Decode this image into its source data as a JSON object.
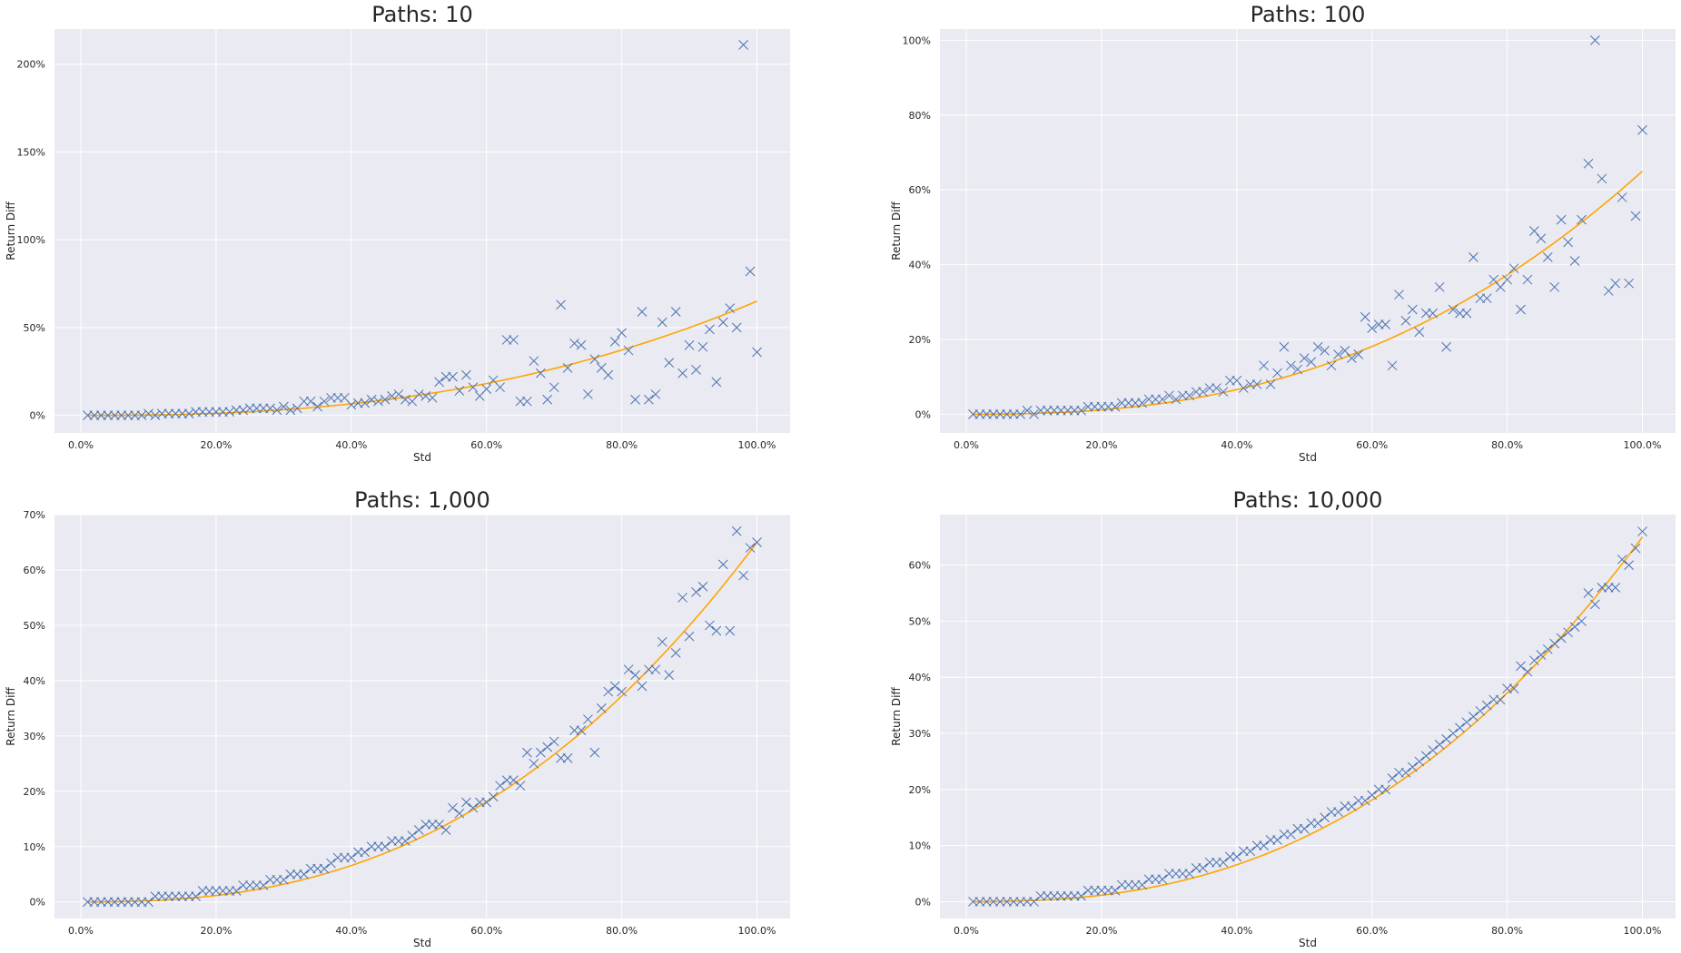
{
  "figure": {
    "background": "#ffffff",
    "panel_background": "#eaeaf2",
    "grid_color": "#ffffff",
    "marker_color": "#4c72b0",
    "fit_color": "#ffa500"
  },
  "chart_data": [
    {
      "type": "scatter",
      "title": "Paths: 10",
      "xlabel": "Std",
      "ylabel": "Return Diff",
      "x_ticks": [
        0,
        0.2,
        0.4,
        0.6,
        0.8,
        1.0
      ],
      "x_tick_labels": [
        "0.0%",
        "20.0%",
        "40.0%",
        "60.0%",
        "80.0%",
        "100.0%"
      ],
      "y_ticks": [
        0,
        0.5,
        1.0,
        1.5,
        2.0
      ],
      "y_tick_labels": [
        "0%",
        "50%",
        "100%",
        "150%",
        "200%"
      ],
      "xlim": [
        -0.039,
        1.049
      ],
      "ylim": [
        -0.1,
        2.2
      ],
      "grid": true,
      "x": [
        0.01,
        0.02,
        0.03,
        0.04,
        0.05,
        0.06,
        0.07,
        0.08,
        0.09,
        0.1,
        0.11,
        0.12,
        0.13,
        0.14,
        0.15,
        0.16,
        0.17,
        0.18,
        0.19,
        0.2,
        0.21,
        0.22,
        0.23,
        0.24,
        0.25,
        0.26,
        0.27,
        0.28,
        0.29,
        0.3,
        0.31,
        0.32,
        0.33,
        0.34,
        0.35,
        0.36,
        0.37,
        0.38,
        0.39,
        0.4,
        0.41,
        0.42,
        0.43,
        0.44,
        0.45,
        0.46,
        0.47,
        0.48,
        0.49,
        0.5,
        0.51,
        0.52,
        0.53,
        0.54,
        0.55,
        0.56,
        0.57,
        0.58,
        0.59,
        0.6,
        0.61,
        0.62,
        0.63,
        0.64,
        0.65,
        0.66,
        0.67,
        0.68,
        0.69,
        0.7,
        0.71,
        0.72,
        0.73,
        0.74,
        0.75,
        0.76,
        0.77,
        0.78,
        0.79,
        0.8,
        0.81,
        0.82,
        0.83,
        0.84,
        0.85,
        0.86,
        0.87,
        0.88,
        0.89,
        0.9,
        0.91,
        0.92,
        0.93,
        0.94,
        0.95,
        0.96,
        0.97,
        0.98,
        0.99,
        1.0
      ],
      "y": [
        0.0,
        0.0,
        0.0,
        0.0,
        0.0,
        0.0,
        0.0,
        0.0,
        0.0,
        0.01,
        0.0,
        0.01,
        0.01,
        0.01,
        0.01,
        0.01,
        0.02,
        0.02,
        0.02,
        0.02,
        0.02,
        0.02,
        0.03,
        0.03,
        0.04,
        0.04,
        0.04,
        0.04,
        0.03,
        0.05,
        0.03,
        0.04,
        0.08,
        0.08,
        0.05,
        0.08,
        0.1,
        0.1,
        0.1,
        0.06,
        0.07,
        0.07,
        0.09,
        0.08,
        0.09,
        0.11,
        0.12,
        0.09,
        0.08,
        0.12,
        0.11,
        0.1,
        0.19,
        0.22,
        0.22,
        0.14,
        0.23,
        0.16,
        0.11,
        0.15,
        0.2,
        0.16,
        0.43,
        0.43,
        0.08,
        0.08,
        0.31,
        0.24,
        0.09,
        0.16,
        0.63,
        0.27,
        0.41,
        0.4,
        0.12,
        0.32,
        0.27,
        0.23,
        0.42,
        0.47,
        0.37,
        0.09,
        0.59,
        0.09,
        0.12,
        0.53,
        0.3,
        0.59,
        0.24,
        0.4,
        0.26,
        0.39,
        0.49,
        0.19,
        0.53,
        0.61,
        0.5,
        2.11,
        0.82,
        0.36
      ],
      "fit": {
        "coefficient": 0.65,
        "exponent": 2.5
      }
    },
    {
      "type": "scatter",
      "title": "Paths: 100",
      "xlabel": "Std",
      "ylabel": "Return Diff",
      "x_ticks": [
        0,
        0.2,
        0.4,
        0.6,
        0.8,
        1.0
      ],
      "x_tick_labels": [
        "0.0%",
        "20.0%",
        "40.0%",
        "60.0%",
        "80.0%",
        "100.0%"
      ],
      "y_ticks": [
        0,
        0.2,
        0.4,
        0.6,
        0.8,
        1.0
      ],
      "y_tick_labels": [
        "0%",
        "20%",
        "40%",
        "60%",
        "80%",
        "100%"
      ],
      "xlim": [
        -0.039,
        1.049
      ],
      "ylim": [
        -0.05,
        1.03
      ],
      "grid": true,
      "x": [
        0.01,
        0.02,
        0.03,
        0.04,
        0.05,
        0.06,
        0.07,
        0.08,
        0.09,
        0.1,
        0.11,
        0.12,
        0.13,
        0.14,
        0.15,
        0.16,
        0.17,
        0.18,
        0.19,
        0.2,
        0.21,
        0.22,
        0.23,
        0.24,
        0.25,
        0.26,
        0.27,
        0.28,
        0.29,
        0.3,
        0.31,
        0.32,
        0.33,
        0.34,
        0.35,
        0.36,
        0.37,
        0.38,
        0.39,
        0.4,
        0.41,
        0.42,
        0.43,
        0.44,
        0.45,
        0.46,
        0.47,
        0.48,
        0.49,
        0.5,
        0.51,
        0.52,
        0.53,
        0.54,
        0.55,
        0.56,
        0.57,
        0.58,
        0.59,
        0.6,
        0.61,
        0.62,
        0.63,
        0.64,
        0.65,
        0.66,
        0.67,
        0.68,
        0.69,
        0.7,
        0.71,
        0.72,
        0.73,
        0.74,
        0.75,
        0.76,
        0.77,
        0.78,
        0.79,
        0.8,
        0.81,
        0.82,
        0.83,
        0.84,
        0.85,
        0.86,
        0.87,
        0.88,
        0.89,
        0.9,
        0.91,
        0.92,
        0.93,
        0.94,
        0.95,
        0.96,
        0.97,
        0.98,
        0.99,
        1.0
      ],
      "y": [
        0.0,
        0.0,
        0.0,
        0.0,
        0.0,
        0.0,
        0.0,
        0.0,
        0.01,
        0.0,
        0.01,
        0.01,
        0.01,
        0.01,
        0.01,
        0.01,
        0.01,
        0.02,
        0.02,
        0.02,
        0.02,
        0.02,
        0.03,
        0.03,
        0.03,
        0.03,
        0.04,
        0.04,
        0.04,
        0.05,
        0.04,
        0.05,
        0.05,
        0.06,
        0.06,
        0.07,
        0.07,
        0.06,
        0.09,
        0.09,
        0.07,
        0.08,
        0.08,
        0.13,
        0.08,
        0.11,
        0.18,
        0.13,
        0.12,
        0.15,
        0.14,
        0.18,
        0.17,
        0.13,
        0.16,
        0.17,
        0.15,
        0.16,
        0.26,
        0.23,
        0.24,
        0.24,
        0.13,
        0.32,
        0.25,
        0.28,
        0.22,
        0.27,
        0.27,
        0.34,
        0.18,
        0.28,
        0.27,
        0.27,
        0.42,
        0.31,
        0.31,
        0.36,
        0.34,
        0.36,
        0.39,
        0.28,
        0.36,
        0.49,
        0.47,
        0.42,
        0.34,
        0.52,
        0.46,
        0.41,
        0.52,
        0.67,
        1.0,
        0.63,
        0.33,
        0.35,
        0.58,
        0.35,
        0.53,
        0.76
      ],
      "fit": {
        "coefficient": 0.65,
        "exponent": 2.5
      }
    },
    {
      "type": "scatter",
      "title": "Paths: 1,000",
      "xlabel": "Std",
      "ylabel": "Return Diff",
      "x_ticks": [
        0,
        0.2,
        0.4,
        0.6,
        0.8,
        1.0
      ],
      "x_tick_labels": [
        "0.0%",
        "20.0%",
        "40.0%",
        "60.0%",
        "80.0%",
        "100.0%"
      ],
      "y_ticks": [
        0,
        0.1,
        0.2,
        0.3,
        0.4,
        0.5,
        0.6,
        0.7
      ],
      "y_tick_labels": [
        "0%",
        "10%",
        "20%",
        "30%",
        "40%",
        "50%",
        "60%",
        "70%"
      ],
      "xlim": [
        -0.039,
        1.049
      ],
      "ylim": [
        -0.03,
        0.7
      ],
      "grid": true,
      "x": [
        0.01,
        0.02,
        0.03,
        0.04,
        0.05,
        0.06,
        0.07,
        0.08,
        0.09,
        0.1,
        0.11,
        0.12,
        0.13,
        0.14,
        0.15,
        0.16,
        0.17,
        0.18,
        0.19,
        0.2,
        0.21,
        0.22,
        0.23,
        0.24,
        0.25,
        0.26,
        0.27,
        0.28,
        0.29,
        0.3,
        0.31,
        0.32,
        0.33,
        0.34,
        0.35,
        0.36,
        0.37,
        0.38,
        0.39,
        0.4,
        0.41,
        0.42,
        0.43,
        0.44,
        0.45,
        0.46,
        0.47,
        0.48,
        0.49,
        0.5,
        0.51,
        0.52,
        0.53,
        0.54,
        0.55,
        0.56,
        0.57,
        0.58,
        0.59,
        0.6,
        0.61,
        0.62,
        0.63,
        0.64,
        0.65,
        0.66,
        0.67,
        0.68,
        0.69,
        0.7,
        0.71,
        0.72,
        0.73,
        0.74,
        0.75,
        0.76,
        0.77,
        0.78,
        0.79,
        0.8,
        0.81,
        0.82,
        0.83,
        0.84,
        0.85,
        0.86,
        0.87,
        0.88,
        0.89,
        0.9,
        0.91,
        0.92,
        0.93,
        0.94,
        0.95,
        0.96,
        0.97,
        0.98,
        0.99,
        1.0
      ],
      "y": [
        0.0,
        0.0,
        0.0,
        0.0,
        0.0,
        0.0,
        0.0,
        0.0,
        0.0,
        0.0,
        0.01,
        0.01,
        0.01,
        0.01,
        0.01,
        0.01,
        0.01,
        0.02,
        0.02,
        0.02,
        0.02,
        0.02,
        0.02,
        0.03,
        0.03,
        0.03,
        0.03,
        0.04,
        0.04,
        0.04,
        0.05,
        0.05,
        0.05,
        0.06,
        0.06,
        0.06,
        0.07,
        0.08,
        0.08,
        0.08,
        0.09,
        0.09,
        0.1,
        0.1,
        0.1,
        0.11,
        0.11,
        0.11,
        0.12,
        0.13,
        0.14,
        0.14,
        0.14,
        0.13,
        0.17,
        0.16,
        0.18,
        0.17,
        0.18,
        0.18,
        0.19,
        0.21,
        0.22,
        0.22,
        0.21,
        0.27,
        0.25,
        0.27,
        0.28,
        0.29,
        0.26,
        0.26,
        0.31,
        0.31,
        0.33,
        0.27,
        0.35,
        0.38,
        0.39,
        0.38,
        0.42,
        0.41,
        0.39,
        0.42,
        0.42,
        0.47,
        0.41,
        0.45,
        0.55,
        0.48,
        0.56,
        0.57,
        0.5,
        0.49,
        0.61,
        0.49,
        0.67,
        0.59,
        0.64,
        0.65
      ],
      "fit": {
        "coefficient": 0.65,
        "exponent": 2.5
      }
    },
    {
      "type": "scatter",
      "title": "Paths: 10,000",
      "xlabel": "Std",
      "ylabel": "Return Diff",
      "x_ticks": [
        0,
        0.2,
        0.4,
        0.6,
        0.8,
        1.0
      ],
      "x_tick_labels": [
        "0.0%",
        "20.0%",
        "40.0%",
        "60.0%",
        "80.0%",
        "100.0%"
      ],
      "y_ticks": [
        0,
        0.1,
        0.2,
        0.3,
        0.4,
        0.5,
        0.6
      ],
      "y_tick_labels": [
        "0%",
        "10%",
        "20%",
        "30%",
        "40%",
        "50%",
        "60%"
      ],
      "xlim": [
        -0.039,
        1.049
      ],
      "ylim": [
        -0.03,
        0.69
      ],
      "grid": true,
      "x": [
        0.01,
        0.02,
        0.03,
        0.04,
        0.05,
        0.06,
        0.07,
        0.08,
        0.09,
        0.1,
        0.11,
        0.12,
        0.13,
        0.14,
        0.15,
        0.16,
        0.17,
        0.18,
        0.19,
        0.2,
        0.21,
        0.22,
        0.23,
        0.24,
        0.25,
        0.26,
        0.27,
        0.28,
        0.29,
        0.3,
        0.31,
        0.32,
        0.33,
        0.34,
        0.35,
        0.36,
        0.37,
        0.38,
        0.39,
        0.4,
        0.41,
        0.42,
        0.43,
        0.44,
        0.45,
        0.46,
        0.47,
        0.48,
        0.49,
        0.5,
        0.51,
        0.52,
        0.53,
        0.54,
        0.55,
        0.56,
        0.57,
        0.58,
        0.59,
        0.6,
        0.61,
        0.62,
        0.63,
        0.64,
        0.65,
        0.66,
        0.67,
        0.68,
        0.69,
        0.7,
        0.71,
        0.72,
        0.73,
        0.74,
        0.75,
        0.76,
        0.77,
        0.78,
        0.79,
        0.8,
        0.81,
        0.82,
        0.83,
        0.84,
        0.85,
        0.86,
        0.87,
        0.88,
        0.89,
        0.9,
        0.91,
        0.92,
        0.93,
        0.94,
        0.95,
        0.96,
        0.97,
        0.98,
        0.99,
        1.0
      ],
      "y": [
        0.0,
        0.0,
        0.0,
        0.0,
        0.0,
        0.0,
        0.0,
        0.0,
        0.0,
        0.0,
        0.01,
        0.01,
        0.01,
        0.01,
        0.01,
        0.01,
        0.01,
        0.02,
        0.02,
        0.02,
        0.02,
        0.02,
        0.03,
        0.03,
        0.03,
        0.03,
        0.04,
        0.04,
        0.04,
        0.05,
        0.05,
        0.05,
        0.05,
        0.06,
        0.06,
        0.07,
        0.07,
        0.07,
        0.08,
        0.08,
        0.09,
        0.09,
        0.1,
        0.1,
        0.11,
        0.11,
        0.12,
        0.12,
        0.13,
        0.13,
        0.14,
        0.14,
        0.15,
        0.16,
        0.16,
        0.17,
        0.17,
        0.18,
        0.18,
        0.19,
        0.2,
        0.2,
        0.22,
        0.23,
        0.23,
        0.24,
        0.25,
        0.26,
        0.27,
        0.28,
        0.29,
        0.3,
        0.31,
        0.32,
        0.33,
        0.34,
        0.35,
        0.36,
        0.36,
        0.38,
        0.38,
        0.42,
        0.41,
        0.43,
        0.44,
        0.45,
        0.46,
        0.47,
        0.48,
        0.49,
        0.5,
        0.55,
        0.53,
        0.56,
        0.56,
        0.56,
        0.61,
        0.6,
        0.63,
        0.66
      ],
      "fit": {
        "coefficient": 0.65,
        "exponent": 2.5
      }
    }
  ]
}
